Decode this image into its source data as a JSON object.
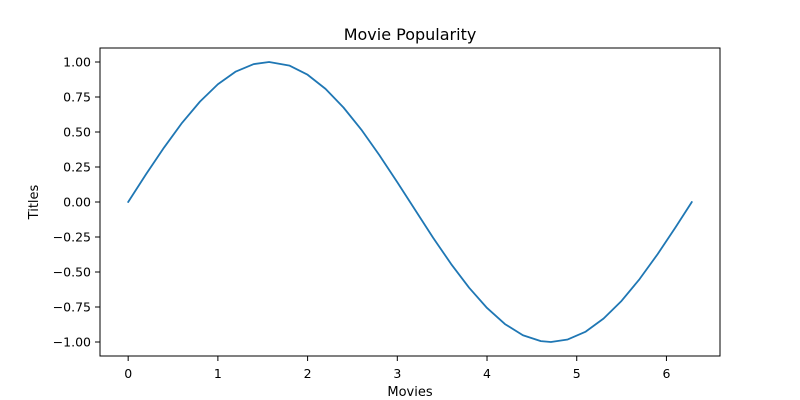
{
  "chart_data": {
    "type": "line",
    "title": "Movie Popularity",
    "xlabel": "Movies",
    "ylabel": "Titles",
    "xlim": [
      -0.314,
      6.597
    ],
    "ylim": [
      -1.1,
      1.1
    ],
    "x_ticks": [
      0,
      1,
      2,
      3,
      4,
      5,
      6
    ],
    "x_tick_labels": [
      "0",
      "1",
      "2",
      "3",
      "4",
      "5",
      "6"
    ],
    "y_ticks": [
      1.0,
      0.75,
      0.5,
      0.25,
      0.0,
      -0.25,
      -0.5,
      -0.75,
      -1.0
    ],
    "y_tick_labels": [
      "1.00",
      "0.75",
      "0.50",
      "0.25",
      "0.00",
      "−0.25",
      "−0.50",
      "−0.75",
      "−1.00"
    ],
    "grid": false,
    "series": [
      {
        "color": "#1f77b4",
        "x": [
          0,
          0.2,
          0.4,
          0.6,
          0.8,
          1.0,
          1.2,
          1.4,
          1.571,
          1.8,
          2.0,
          2.2,
          2.4,
          2.6,
          2.8,
          3.0,
          3.142,
          3.4,
          3.6,
          3.8,
          4.0,
          4.2,
          4.4,
          4.6,
          4.712,
          4.9,
          5.1,
          5.3,
          5.5,
          5.7,
          5.9,
          6.1,
          6.283
        ],
        "y": [
          0.0,
          0.199,
          0.389,
          0.565,
          0.717,
          0.841,
          0.932,
          0.985,
          1.0,
          0.974,
          0.909,
          0.808,
          0.675,
          0.516,
          0.335,
          0.141,
          0.0,
          -0.256,
          -0.443,
          -0.612,
          -0.757,
          -0.872,
          -0.952,
          -0.994,
          -1.0,
          -0.982,
          -0.926,
          -0.832,
          -0.706,
          -0.551,
          -0.374,
          -0.182,
          0.0
        ]
      }
    ]
  }
}
